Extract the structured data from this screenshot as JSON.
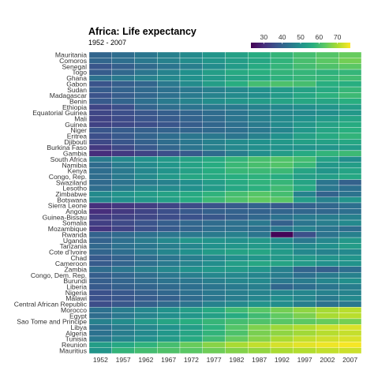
{
  "chart_data": {
    "type": "heatmap",
    "title": "Africa: Life expectancy",
    "subtitle": "1952 - 2007",
    "xlabel": "",
    "ylabel": "",
    "colorscale": "viridis",
    "color_range": [
      23,
      77
    ],
    "legend_ticks": [
      30,
      40,
      50,
      60,
      70
    ],
    "legend_position": "top-right",
    "years": [
      1952,
      1957,
      1962,
      1967,
      1972,
      1977,
      1982,
      1987,
      1992,
      1997,
      2002,
      2007
    ],
    "countries": [
      "Mauritania",
      "Comoros",
      "Senegal",
      "Togo",
      "Ghana",
      "Gabon",
      "Sudan",
      "Madagascar",
      "Benin",
      "Ethiopia",
      "Equatorial Guinea",
      "Mali",
      "Guinea",
      "Niger",
      "Eritrea",
      "Djibouti",
      "Burkina Faso",
      "Gambia",
      "South Africa",
      "Namibia",
      "Kenya",
      "Congo, Rep.",
      "Swaziland",
      "Lesotho",
      "Zimbabwe",
      "Botswana",
      "Sierra Leone",
      "Angola",
      "Guinea-Bissau",
      "Somalia",
      "Mozambique",
      "Rwanda",
      "Uganda",
      "Tanzania",
      "Cote d'Ivoire",
      "Chad",
      "Cameroon",
      "Zambia",
      "Congo, Dem. Rep.",
      "Burundi",
      "Liberia",
      "Nigeria",
      "Malawi",
      "Central African Republic",
      "Morocco",
      "Egypt",
      "Sao Tome and Principe",
      "Libya",
      "Algeria",
      "Tunisia",
      "Reunion",
      "Mauritius"
    ],
    "values": [
      [
        40.5,
        42.3,
        44.2,
        46.3,
        48.4,
        50.9,
        53.6,
        56.0,
        58.3,
        60.4,
        62.2,
        64.2
      ],
      [
        40.7,
        42.5,
        44.5,
        46.5,
        48.9,
        50.9,
        52.9,
        54.9,
        57.9,
        60.7,
        62.97,
        65.2
      ],
      [
        37.3,
        39.3,
        41.5,
        43.6,
        45.8,
        48.9,
        52.4,
        55.8,
        58.2,
        60.2,
        61.6,
        63.1
      ],
      [
        38.6,
        41.2,
        43.9,
        46.8,
        49.8,
        52.9,
        55.5,
        56.9,
        58.1,
        58.4,
        57.6,
        58.4
      ],
      [
        43.1,
        44.8,
        46.5,
        48.1,
        49.9,
        51.8,
        53.7,
        55.7,
        57.5,
        58.6,
        58.5,
        60.0
      ],
      [
        37.0,
        38.99,
        40.5,
        44.6,
        48.7,
        52.8,
        56.6,
        60.2,
        61.4,
        60.5,
        56.8,
        56.7
      ],
      [
        38.6,
        40.0,
        41.4,
        42.9,
        44.4,
        46.0,
        47.8,
        49.7,
        51.8,
        53.8,
        55.7,
        58.6
      ],
      [
        36.7,
        38.9,
        40.8,
        42.9,
        44.9,
        46.9,
        48.5,
        49.4,
        52.2,
        54.98,
        57.3,
        59.4
      ],
      [
        38.2,
        40.4,
        42.6,
        44.9,
        47.0,
        49.2,
        50.9,
        52.3,
        53.9,
        54.8,
        54.4,
        56.7
      ],
      [
        34.1,
        36.0,
        40.1,
        42.1,
        43.5,
        44.5,
        44.9,
        46.7,
        48.1,
        49.4,
        50.7,
        52.9
      ],
      [
        34.5,
        35.98,
        37.5,
        38.99,
        40.5,
        42.0,
        43.7,
        45.7,
        47.5,
        48.2,
        49.3,
        51.6
      ],
      [
        33.7,
        35.3,
        36.9,
        38.5,
        40.0,
        41.7,
        43.9,
        46.4,
        48.4,
        49.9,
        51.8,
        54.5
      ],
      [
        33.6,
        34.6,
        35.8,
        37.2,
        38.8,
        40.8,
        42.9,
        45.2,
        48.6,
        51.5,
        53.7,
        56.0
      ],
      [
        37.4,
        38.6,
        39.5,
        40.1,
        40.5,
        41.3,
        42.6,
        44.6,
        47.4,
        51.3,
        54.5,
        56.9
      ],
      [
        35.9,
        38.0,
        40.2,
        42.2,
        44.1,
        44.5,
        43.9,
        46.5,
        49.99,
        53.4,
        55.6,
        58.0
      ],
      [
        34.8,
        37.3,
        39.7,
        42.1,
        44.4,
        46.5,
        48.8,
        50.0,
        51.6,
        53.2,
        53.4,
        54.8
      ],
      [
        32.0,
        34.9,
        37.8,
        40.7,
        43.6,
        46.1,
        48.1,
        49.6,
        50.3,
        50.3,
        50.7,
        52.3
      ],
      [
        30.0,
        32.1,
        33.9,
        35.9,
        38.3,
        41.8,
        45.6,
        49.3,
        52.6,
        55.9,
        58.0,
        59.4
      ],
      [
        45.0,
        47.99,
        49.95,
        51.9,
        53.7,
        55.5,
        58.2,
        60.8,
        61.9,
        60.2,
        53.4,
        49.3
      ],
      [
        41.7,
        45.2,
        48.4,
        51.2,
        53.9,
        56.4,
        58.97,
        60.8,
        62.0,
        58.9,
        51.5,
        52.9
      ],
      [
        42.3,
        44.7,
        47.9,
        50.7,
        53.6,
        56.2,
        58.8,
        59.3,
        59.3,
        54.4,
        50.99,
        54.1
      ],
      [
        42.1,
        45.1,
        48.4,
        51.9,
        54.9,
        55.6,
        56.7,
        57.5,
        56.4,
        52.96,
        52.97,
        55.3
      ],
      [
        41.4,
        43.4,
        44.99,
        46.6,
        49.6,
        52.5,
        55.6,
        57.7,
        58.5,
        54.3,
        43.9,
        39.6
      ],
      [
        42.1,
        45.0,
        47.7,
        48.5,
        49.8,
        52.2,
        55.1,
        57.2,
        59.7,
        55.6,
        44.6,
        42.6
      ],
      [
        48.5,
        50.5,
        52.4,
        54.0,
        55.6,
        57.7,
        60.4,
        62.4,
        60.4,
        46.8,
        39.99,
        43.5
      ],
      [
        47.6,
        49.6,
        51.5,
        53.3,
        56.0,
        59.3,
        61.5,
        63.6,
        62.7,
        52.6,
        46.6,
        50.7
      ],
      [
        30.3,
        31.6,
        32.8,
        34.1,
        35.4,
        36.8,
        38.4,
        40.0,
        38.3,
        39.9,
        41.0,
        42.6
      ],
      [
        30.0,
        32.0,
        34.0,
        36.0,
        37.9,
        39.5,
        39.9,
        39.9,
        40.6,
        41.0,
        41.0,
        42.7
      ],
      [
        32.5,
        33.5,
        34.5,
        35.5,
        36.5,
        37.5,
        39.3,
        41.2,
        43.3,
        44.9,
        45.5,
        46.4
      ],
      [
        32.98,
        34.98,
        36.98,
        38.98,
        40.97,
        41.97,
        42.96,
        44.5,
        39.7,
        43.8,
        45.9,
        48.2
      ],
      [
        31.3,
        33.8,
        36.2,
        38.1,
        40.3,
        42.5,
        42.8,
        42.9,
        44.3,
        46.3,
        44.0,
        42.1
      ],
      [
        40.0,
        41.5,
        43.0,
        44.1,
        44.6,
        45.0,
        46.2,
        44.0,
        23.6,
        36.1,
        43.4,
        46.2
      ],
      [
        39.98,
        42.6,
        45.3,
        48.1,
        51.0,
        50.4,
        49.8,
        51.5,
        48.8,
        44.6,
        47.8,
        51.5
      ],
      [
        41.2,
        42.97,
        44.2,
        45.8,
        47.6,
        49.9,
        51.0,
        51.8,
        50.4,
        48.5,
        49.7,
        52.5
      ],
      [
        40.5,
        42.5,
        44.9,
        47.4,
        49.8,
        52.4,
        53.98,
        54.7,
        52.0,
        47.99,
        46.8,
        48.3
      ],
      [
        38.1,
        39.9,
        41.7,
        43.6,
        45.6,
        47.4,
        49.5,
        51.1,
        51.7,
        51.6,
        50.5,
        50.7
      ],
      [
        38.5,
        40.4,
        42.6,
        44.8,
        47.0,
        49.4,
        53.0,
        55.0,
        54.3,
        52.2,
        49.9,
        50.4
      ],
      [
        42.0,
        44.1,
        46.0,
        47.8,
        50.1,
        51.4,
        51.8,
        50.8,
        46.1,
        40.2,
        39.2,
        42.4
      ],
      [
        39.1,
        40.5,
        42.1,
        44.1,
        45.9,
        47.8,
        47.8,
        47.4,
        45.5,
        42.6,
        44.97,
        46.5
      ],
      [
        39.0,
        40.5,
        42.0,
        43.5,
        44.1,
        45.9,
        47.5,
        48.2,
        44.7,
        45.3,
        47.4,
        49.6
      ],
      [
        38.2,
        39.5,
        40.5,
        41.5,
        42.6,
        43.8,
        44.9,
        46.0,
        40.8,
        42.2,
        43.8,
        45.7
      ],
      [
        36.3,
        37.8,
        39.4,
        41.0,
        42.8,
        44.5,
        45.8,
        46.9,
        47.5,
        47.5,
        46.6,
        46.9
      ],
      [
        36.3,
        37.2,
        38.4,
        39.5,
        41.8,
        43.8,
        45.6,
        47.5,
        49.4,
        47.5,
        45.0,
        48.3
      ],
      [
        35.5,
        37.5,
        39.5,
        41.5,
        43.5,
        46.8,
        48.3,
        50.5,
        49.4,
        46.1,
        43.3,
        44.7
      ],
      [
        42.9,
        45.4,
        47.9,
        50.3,
        52.9,
        55.7,
        59.7,
        62.7,
        65.4,
        67.7,
        69.6,
        71.2
      ],
      [
        41.9,
        44.4,
        46.99,
        49.3,
        51.1,
        53.3,
        56.0,
        59.8,
        63.7,
        66.0,
        69.8,
        71.3
      ],
      [
        46.5,
        48.9,
        51.9,
        54.4,
        56.5,
        58.6,
        60.4,
        61.7,
        62.7,
        63.3,
        64.3,
        65.5
      ],
      [
        42.7,
        45.3,
        47.8,
        50.2,
        52.8,
        57.4,
        62.2,
        66.2,
        68.8,
        70.5,
        72.7,
        73.95
      ],
      [
        43.1,
        45.7,
        48.3,
        51.4,
        54.5,
        58.0,
        61.4,
        65.8,
        67.7,
        69.2,
        70.99,
        72.3
      ],
      [
        44.6,
        47.1,
        49.6,
        52.1,
        55.6,
        59.8,
        64.0,
        66.9,
        70.0,
        71.97,
        73.0,
        73.9
      ],
      [
        52.7,
        55.1,
        57.7,
        60.5,
        64.3,
        67.1,
        69.9,
        71.9,
        73.6,
        74.8,
        75.7,
        76.4
      ],
      [
        50.99,
        58.1,
        60.2,
        61.6,
        62.9,
        64.9,
        66.7,
        67.99,
        69.99,
        70.7,
        71.95,
        72.8
      ]
    ]
  }
}
